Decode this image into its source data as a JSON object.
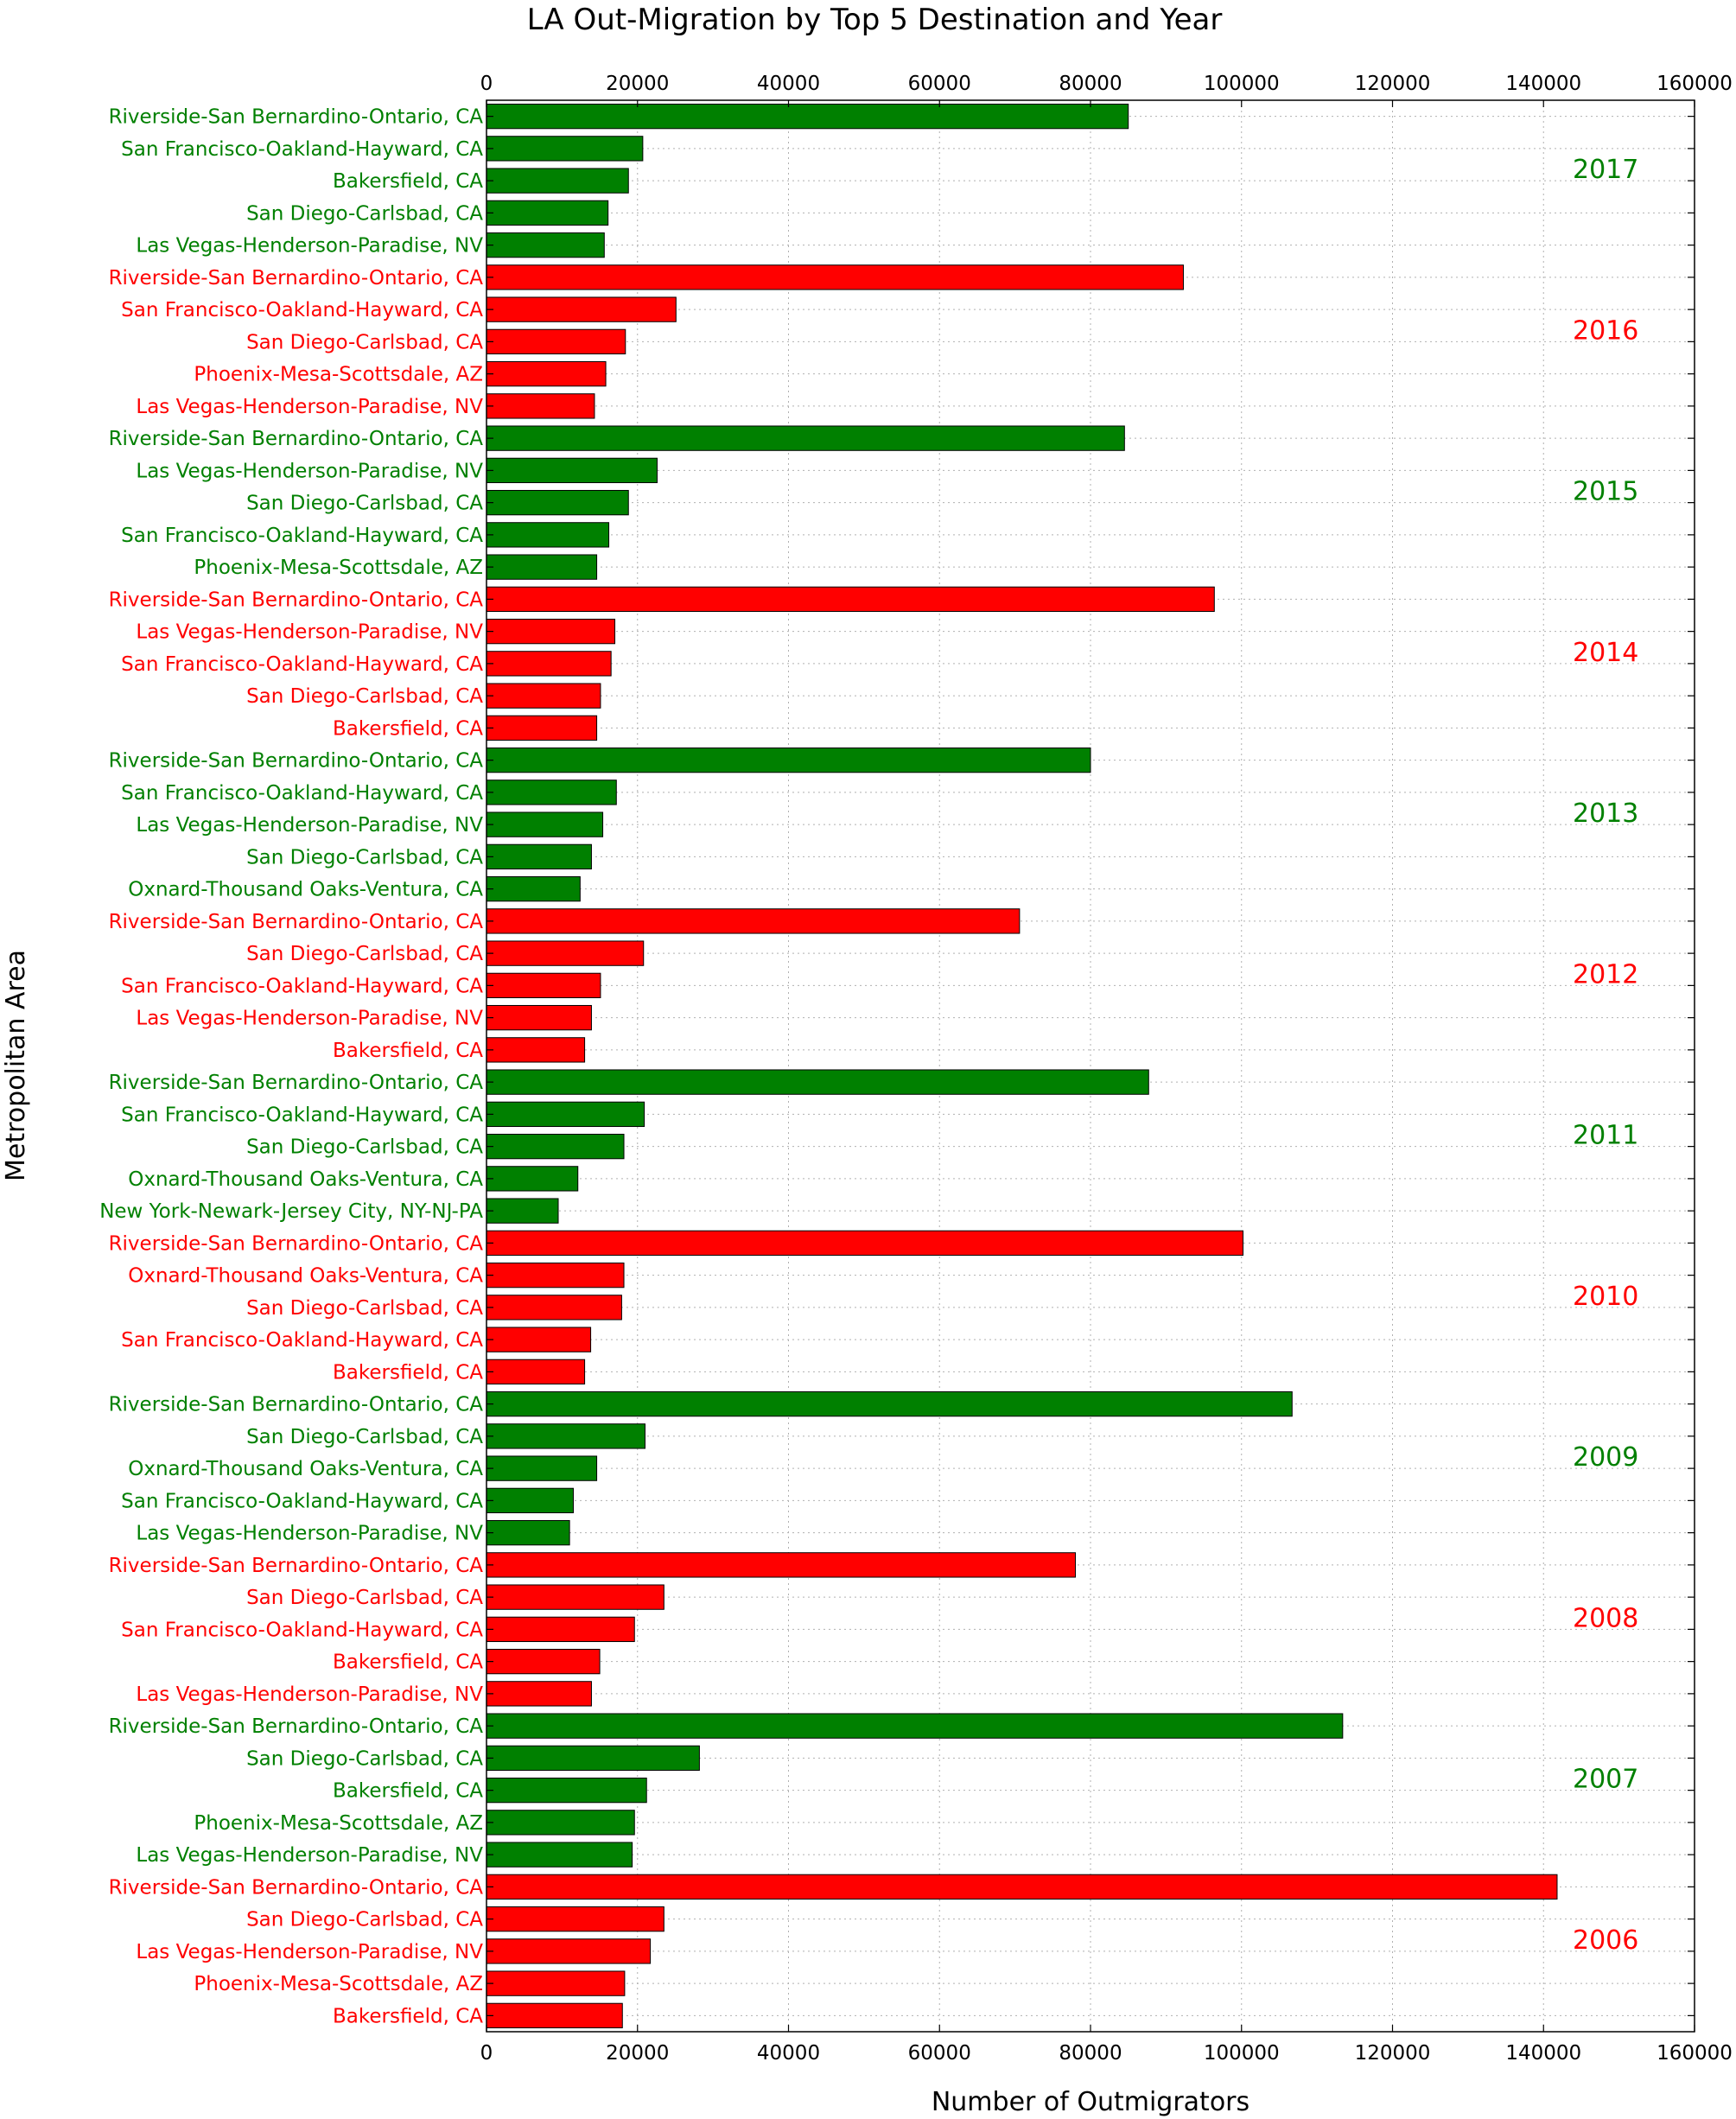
{
  "chart_data": {
    "type": "bar",
    "orientation": "horizontal",
    "title": "LA Out-Migration by Top 5 Destination and Year",
    "xlabel": "Number of Outmigrators",
    "ylabel": "Metropolitan Area",
    "xlim": [
      0,
      160000
    ],
    "xticks": [
      "0",
      "20000",
      "40000",
      "60000",
      "80000",
      "100000",
      "120000",
      "140000",
      "160000"
    ],
    "grid": true,
    "colors": {
      "green": "#008000",
      "red": "#ff0000"
    },
    "groups": [
      {
        "year": "2017",
        "color": "green",
        "bars": [
          {
            "category": "Riverside-San Bernardino-Ontario, CA",
            "value": 85000
          },
          {
            "category": "San Francisco-Oakland-Hayward, CA",
            "value": 20700
          },
          {
            "category": "Bakersfield, CA",
            "value": 18800
          },
          {
            "category": "San Diego-Carlsbad, CA",
            "value": 16100
          },
          {
            "category": "Las Vegas-Henderson-Paradise, NV",
            "value": 15600
          }
        ]
      },
      {
        "year": "2016",
        "color": "red",
        "bars": [
          {
            "category": "Riverside-San Bernardino-Ontario, CA",
            "value": 92300
          },
          {
            "category": "San Francisco-Oakland-Hayward, CA",
            "value": 25100
          },
          {
            "category": "San Diego-Carlsbad, CA",
            "value": 18400
          },
          {
            "category": "Phoenix-Mesa-Scottsdale, AZ",
            "value": 15800
          },
          {
            "category": "Las Vegas-Henderson-Paradise, NV",
            "value": 14300
          }
        ]
      },
      {
        "year": "2015",
        "color": "green",
        "bars": [
          {
            "category": "Riverside-San Bernardino-Ontario, CA",
            "value": 84500
          },
          {
            "category": "Las Vegas-Henderson-Paradise, NV",
            "value": 22600
          },
          {
            "category": "San Diego-Carlsbad, CA",
            "value": 18800
          },
          {
            "category": "San Francisco-Oakland-Hayward, CA",
            "value": 16200
          },
          {
            "category": "Phoenix-Mesa-Scottsdale, AZ",
            "value": 14600
          }
        ]
      },
      {
        "year": "2014",
        "color": "red",
        "bars": [
          {
            "category": "Riverside-San Bernardino-Ontario, CA",
            "value": 96400
          },
          {
            "category": "Las Vegas-Henderson-Paradise, NV",
            "value": 17000
          },
          {
            "category": "San Francisco-Oakland-Hayward, CA",
            "value": 16500
          },
          {
            "category": "San Diego-Carlsbad, CA",
            "value": 15100
          },
          {
            "category": "Bakersfield, CA",
            "value": 14600
          }
        ]
      },
      {
        "year": "2013",
        "color": "green",
        "bars": [
          {
            "category": "Riverside-San Bernardino-Ontario, CA",
            "value": 80000
          },
          {
            "category": "San Francisco-Oakland-Hayward, CA",
            "value": 17200
          },
          {
            "category": "Las Vegas-Henderson-Paradise, NV",
            "value": 15400
          },
          {
            "category": "San Diego-Carlsbad, CA",
            "value": 13900
          },
          {
            "category": "Oxnard-Thousand Oaks-Ventura, CA",
            "value": 12400
          }
        ]
      },
      {
        "year": "2012",
        "color": "red",
        "bars": [
          {
            "category": "Riverside-San Bernardino-Ontario, CA",
            "value": 70600
          },
          {
            "category": "San Diego-Carlsbad, CA",
            "value": 20800
          },
          {
            "category": "San Francisco-Oakland-Hayward, CA",
            "value": 15100
          },
          {
            "category": "Las Vegas-Henderson-Paradise, NV",
            "value": 13900
          },
          {
            "category": "Bakersfield, CA",
            "value": 13000
          }
        ]
      },
      {
        "year": "2011",
        "color": "green",
        "bars": [
          {
            "category": "Riverside-San Bernardino-Ontario, CA",
            "value": 87700
          },
          {
            "category": "San Francisco-Oakland-Hayward, CA",
            "value": 20900
          },
          {
            "category": "San Diego-Carlsbad, CA",
            "value": 18200
          },
          {
            "category": "Oxnard-Thousand Oaks-Ventura, CA",
            "value": 12100
          },
          {
            "category": "New York-Newark-Jersey City, NY-NJ-PA",
            "value": 9500
          }
        ]
      },
      {
        "year": "2010",
        "color": "red",
        "bars": [
          {
            "category": "Riverside-San Bernardino-Ontario, CA",
            "value": 100200
          },
          {
            "category": "Oxnard-Thousand Oaks-Ventura, CA",
            "value": 18200
          },
          {
            "category": "San Diego-Carlsbad, CA",
            "value": 17900
          },
          {
            "category": "San Francisco-Oakland-Hayward, CA",
            "value": 13800
          },
          {
            "category": "Bakersfield, CA",
            "value": 13000
          }
        ]
      },
      {
        "year": "2009",
        "color": "green",
        "bars": [
          {
            "category": "Riverside-San Bernardino-Ontario, CA",
            "value": 106700
          },
          {
            "category": "San Diego-Carlsbad, CA",
            "value": 21000
          },
          {
            "category": "Oxnard-Thousand Oaks-Ventura, CA",
            "value": 14600
          },
          {
            "category": "San Francisco-Oakland-Hayward, CA",
            "value": 11500
          },
          {
            "category": "Las Vegas-Henderson-Paradise, NV",
            "value": 11000
          }
        ]
      },
      {
        "year": "2008",
        "color": "red",
        "bars": [
          {
            "category": "Riverside-San Bernardino-Ontario, CA",
            "value": 78000
          },
          {
            "category": "San Diego-Carlsbad, CA",
            "value": 23500
          },
          {
            "category": "San Francisco-Oakland-Hayward, CA",
            "value": 19600
          },
          {
            "category": "Bakersfield, CA",
            "value": 15000
          },
          {
            "category": "Las Vegas-Henderson-Paradise, NV",
            "value": 13900
          }
        ]
      },
      {
        "year": "2007",
        "color": "green",
        "bars": [
          {
            "category": "Riverside-San Bernardino-Ontario, CA",
            "value": 113400
          },
          {
            "category": "San Diego-Carlsbad, CA",
            "value": 28200
          },
          {
            "category": "Bakersfield, CA",
            "value": 21200
          },
          {
            "category": "Phoenix-Mesa-Scottsdale, AZ",
            "value": 19600
          },
          {
            "category": "Las Vegas-Henderson-Paradise, NV",
            "value": 19300
          }
        ]
      },
      {
        "year": "2006",
        "color": "red",
        "bars": [
          {
            "category": "Riverside-San Bernardino-Ontario, CA",
            "value": 141800
          },
          {
            "category": "San Diego-Carlsbad, CA",
            "value": 23500
          },
          {
            "category": "Las Vegas-Henderson-Paradise, NV",
            "value": 21700
          },
          {
            "category": "Phoenix-Mesa-Scottsdale, AZ",
            "value": 18300
          },
          {
            "category": "Bakersfield, CA",
            "value": 18000
          }
        ]
      }
    ]
  }
}
